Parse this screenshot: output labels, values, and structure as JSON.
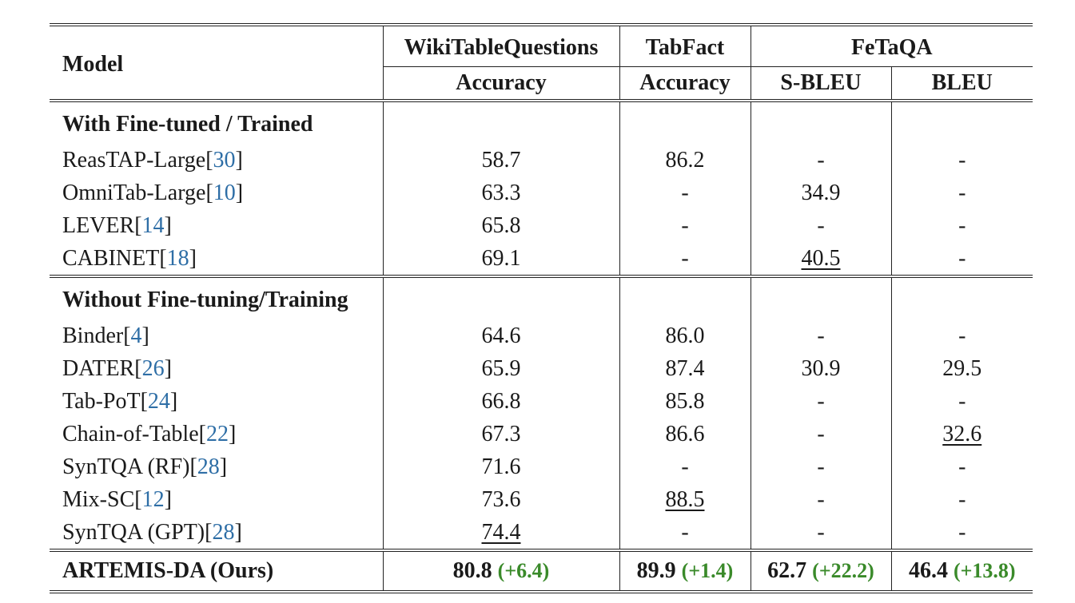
{
  "header": {
    "model": "Model",
    "groups": [
      {
        "label": "WikiTableQuestions",
        "sub": "Accuracy"
      },
      {
        "label": "TabFact",
        "sub": "Accuracy"
      },
      {
        "label": "FeTaQA",
        "subs": [
          "S-BLEU",
          "BLEU"
        ]
      }
    ]
  },
  "sections": [
    {
      "title": "With Fine-tuned / Trained",
      "rows": [
        {
          "name": "ReasTAP-Large",
          "ref": "30",
          "values": [
            "58.7",
            "86.2",
            "-",
            "-"
          ]
        },
        {
          "name": "OmniTab-Large",
          "ref": "10",
          "values": [
            "63.3",
            "-",
            "34.9",
            "-"
          ]
        },
        {
          "name": "LEVER",
          "ref": "14",
          "values": [
            "65.8",
            "-",
            "-",
            "-"
          ]
        },
        {
          "name": "CABINET",
          "ref": "18",
          "values": [
            "69.1",
            "-",
            "40.5",
            "-"
          ]
        }
      ]
    },
    {
      "title": "Without Fine-tuning/Training",
      "rows": [
        {
          "name": "Binder",
          "ref": "4",
          "values": [
            "64.6",
            "86.0",
            "-",
            "-"
          ]
        },
        {
          "name": "DATER",
          "ref": "26",
          "values": [
            "65.9",
            "87.4",
            "30.9",
            "29.5"
          ]
        },
        {
          "name": "Tab-PoT",
          "ref": "24",
          "values": [
            "66.8",
            "85.8",
            "-",
            "-"
          ]
        },
        {
          "name": "Chain-of-Table",
          "ref": "22",
          "values": [
            "67.3",
            "86.6",
            "-",
            "32.6"
          ]
        },
        {
          "name": "SynTQA (RF)",
          "ref": "28",
          "values": [
            "71.6",
            "-",
            "-",
            "-"
          ]
        },
        {
          "name": "Mix-SC",
          "ref": "12",
          "values": [
            "73.6",
            "88.5",
            "-",
            "-"
          ]
        },
        {
          "name": "SynTQA (GPT)",
          "ref": "28",
          "values": [
            "74.4",
            "-",
            "-",
            "-"
          ]
        }
      ]
    }
  ],
  "final": {
    "name": "ARTEMIS-DA (Ours)",
    "values": [
      "80.8",
      "89.9",
      "62.7",
      "46.4"
    ],
    "deltas": [
      "(+6.4)",
      "(+1.4)",
      "(+22.2)",
      "(+13.8)"
    ]
  },
  "colors": {
    "citation": "#2e6ea6",
    "improvement": "#3a8a2a",
    "rule": "#222222"
  }
}
